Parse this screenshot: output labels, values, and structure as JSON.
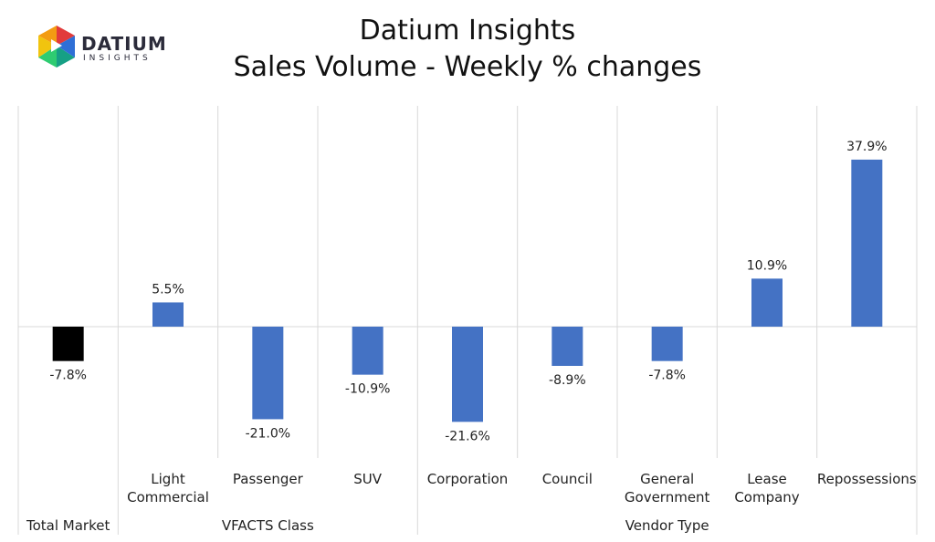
{
  "brand": {
    "name": "DATIUM",
    "sub": "INSIGHTS"
  },
  "chart_data": {
    "type": "bar",
    "title": "Datium Insights",
    "subtitle": "Sales Volume - Weekly % changes",
    "categories": [
      "Total Market",
      "Light Commercial",
      "Passenger",
      "SUV",
      "Corporation",
      "Council",
      "General Government",
      "Lease Company",
      "Repossessions"
    ],
    "category_lines": [
      [
        "Total Market"
      ],
      [
        "Light",
        "Commercial"
      ],
      [
        "Passenger"
      ],
      [
        "SUV"
      ],
      [
        "Corporation"
      ],
      [
        "Council"
      ],
      [
        "General",
        "Government"
      ],
      [
        "Lease",
        "Company"
      ],
      [
        "Repossessions"
      ]
    ],
    "values": [
      -7.8,
      5.5,
      -21.0,
      -10.9,
      -21.6,
      -8.9,
      -7.8,
      10.9,
      37.9
    ],
    "data_labels": [
      "-7.8%",
      "5.5%",
      "-21.0%",
      "-10.9%",
      "-21.6%",
      "-8.9%",
      "-7.8%",
      "10.9%",
      "37.9%"
    ],
    "bar_colors": [
      "#000000",
      "#4472C4",
      "#4472C4",
      "#4472C4",
      "#4472C4",
      "#4472C4",
      "#4472C4",
      "#4472C4",
      "#4472C4"
    ],
    "groups": [
      {
        "label": "VFACTS Class",
        "start": 1,
        "end": 3
      },
      {
        "label": "Vendor Type",
        "start": 4,
        "end": 8
      }
    ],
    "ylim": [
      -30,
      45
    ],
    "grid": false,
    "legend": "none"
  }
}
